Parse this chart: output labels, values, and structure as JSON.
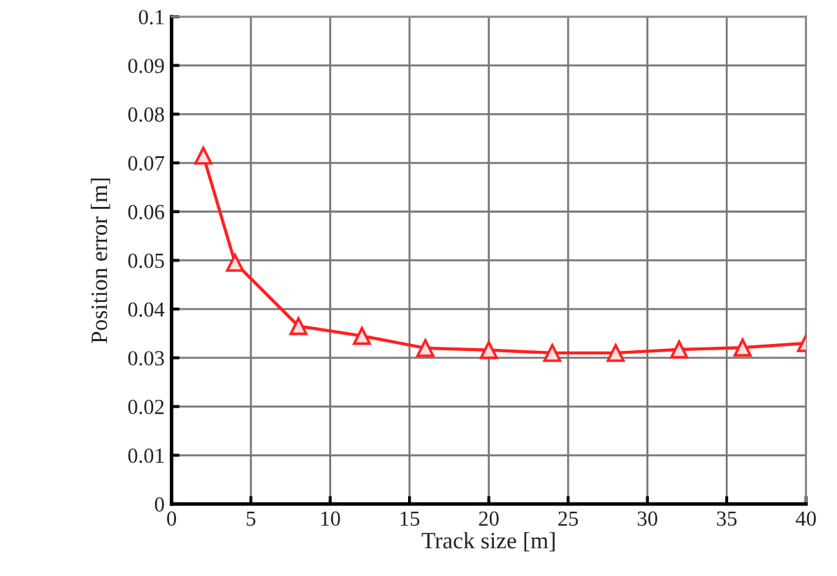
{
  "chart_data": {
    "type": "line",
    "xlabel": "Track size [m]",
    "ylabel": "Position error [m]",
    "x": [
      2,
      4,
      8,
      12,
      16,
      20,
      24,
      28,
      32,
      36,
      40
    ],
    "series": [
      {
        "color": "#ff2020",
        "values": [
          0.0715,
          0.0495,
          0.0365,
          0.0345,
          0.032,
          0.0316,
          0.031,
          0.031,
          0.0317,
          0.0321,
          0.033
        ]
      }
    ],
    "xlim": [
      0,
      40
    ],
    "xticks": [
      0,
      5,
      10,
      15,
      20,
      25,
      30,
      35,
      40
    ],
    "ylim": [
      0,
      0.1
    ],
    "yticks": [
      0,
      0.01,
      0.02,
      0.03,
      0.04,
      0.05,
      0.06,
      0.07,
      0.08,
      0.09,
      0.1
    ],
    "grid": true,
    "marker": "triangle",
    "line_style": "solid"
  }
}
